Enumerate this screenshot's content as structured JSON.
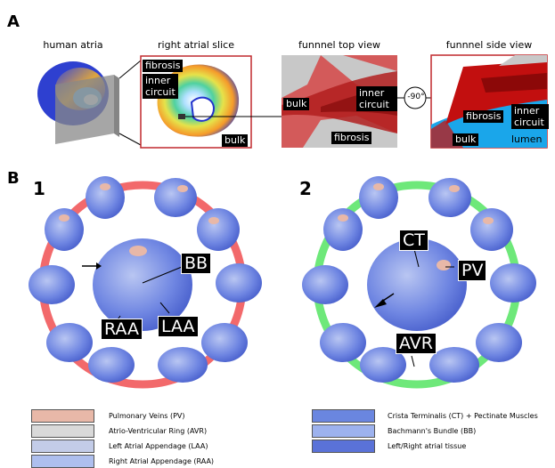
{
  "panelA": {
    "letter": "A",
    "captions": {
      "human_atria": "human atria",
      "right_atrial_slice": "right atrial slice",
      "funnel_top": "funnnel top view",
      "funnel_side": "funnnel side view"
    },
    "slice_labels": {
      "fibrosis": "fibrosis",
      "inner_circuit": "inner\ncircuit",
      "bulk": "bulk"
    },
    "top_labels": {
      "bulk": "bulk",
      "inner_circuit": "inner\ncircuit",
      "fibrosis": "fibrosis"
    },
    "rotation": "-90°",
    "side_labels": {
      "fibrosis": "fibrosis",
      "inner_circuit": "inner\ncircuit",
      "bulk": "bulk",
      "lumen": "lumen"
    }
  },
  "panelB": {
    "letter": "B",
    "ring1": {
      "number": "1",
      "labels": {
        "bb": "BB",
        "raa": "RAA",
        "laa": "LAA"
      },
      "ring_color": "#f2696b"
    },
    "ring2": {
      "number": "2",
      "labels": {
        "ct": "CT",
        "pv": "PV",
        "avr": "AVR"
      },
      "ring_color": "#6ee87a"
    }
  },
  "legend": {
    "left": [
      {
        "label": "Pulmonary Veins (PV)",
        "color": "#e8b8a8"
      },
      {
        "label": "Atrio-Ventricular Ring (AVR)",
        "color": "#d9d9d9"
      },
      {
        "label": "Left Atrial Appendage (LAA)",
        "color": "#c3cce8"
      },
      {
        "label": "Right Atrial Appendage (RAA)",
        "color": "#aebfee"
      }
    ],
    "right": [
      {
        "label": "Crista Terminalis (CT) + Pectinate Muscles",
        "color": "#6a86e0"
      },
      {
        "label": "Bachmann's Bundle (BB)",
        "color": "#9db2ee"
      },
      {
        "label": "Left/Right atrial tissue",
        "color": "#5a72d8"
      }
    ]
  }
}
